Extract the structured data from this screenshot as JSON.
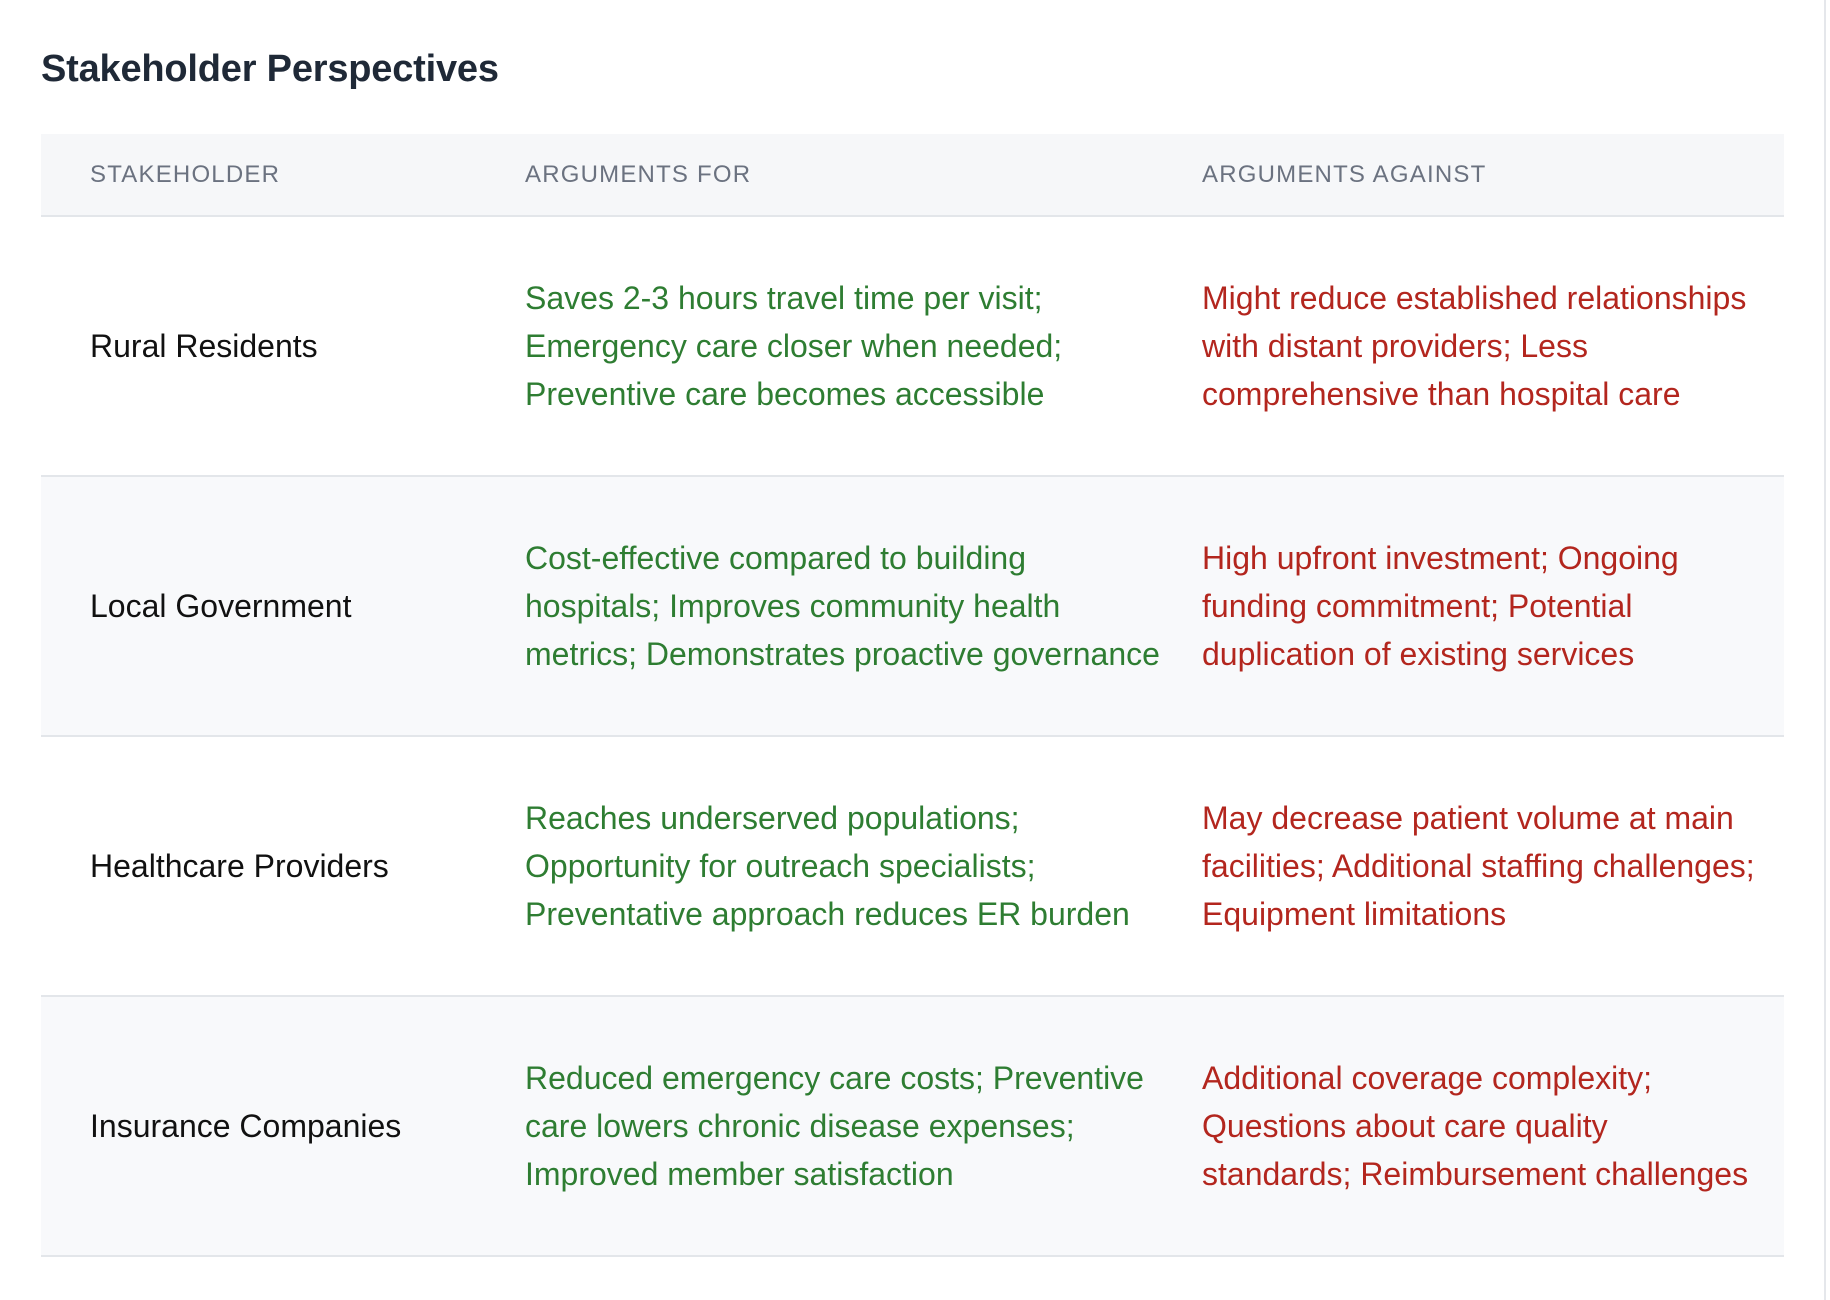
{
  "title": "Stakeholder Perspectives",
  "headers": {
    "stakeholder": "STAKEHOLDER",
    "for": "ARGUMENTS FOR",
    "against": "ARGUMENTS AGAINST"
  },
  "rows": [
    {
      "stakeholder": "Rural Residents",
      "for": "Saves 2-3 hours travel time per visit; Emergency care closer when needed; Preventive care becomes accessible",
      "against": "Might reduce established relationships with distant providers; Less comprehensive than hospital care"
    },
    {
      "stakeholder": "Local Government",
      "for": "Cost-effective compared to building hospitals; Improves community health metrics; Demonstrates proactive governance",
      "against": "High upfront investment; Ongoing funding commitment; Potential duplication of existing services"
    },
    {
      "stakeholder": "Healthcare Providers",
      "for": "Reaches underserved populations; Opportunity for outreach specialists; Preventative approach reduces ER burden",
      "against": "May decrease patient volume at main facilities; Additional staffing challenges; Equipment limitations"
    },
    {
      "stakeholder": "Insurance Companies",
      "for": "Reduced emergency care costs; Preventive care lowers chronic disease expenses; Improved member satisfaction",
      "against": "Additional coverage complexity; Questions about care quality standards; Reimbursement challenges"
    }
  ],
  "colors": {
    "for_text": "#2e7d32",
    "against_text": "#b3261e",
    "header_bg": "#f6f7f9",
    "alt_row_bg": "#f8f9fb"
  }
}
